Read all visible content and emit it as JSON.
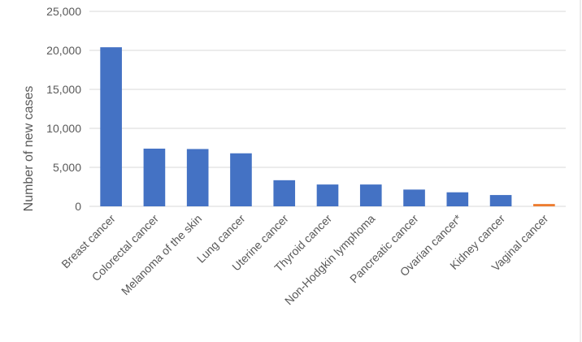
{
  "chart_data": {
    "type": "bar",
    "title": "",
    "xlabel": "",
    "ylabel": "Number of new cases",
    "ylim": [
      0,
      25000
    ],
    "yticks": [
      0,
      5000,
      10000,
      15000,
      20000,
      25000
    ],
    "ytick_labels": [
      "0",
      "5,000",
      "10,000",
      "15,000",
      "20,000",
      "25,000"
    ],
    "grid": true,
    "legend": "none",
    "categories": [
      "Breast cancer",
      "Colorectal cancer",
      "Melanoma of the skin",
      "Lung cancer",
      "Uterine cancer",
      "Thyroid cancer",
      "Non-Hodgkin lymphoma",
      "Pancreatic cancer",
      "Ovarian cancer*",
      "Kidney cancer",
      "Vaginal cancer"
    ],
    "values": [
      20400,
      7400,
      7350,
      6800,
      3350,
      2800,
      2800,
      2150,
      1800,
      1450,
      300
    ],
    "colors": [
      "#4472c4",
      "#4472c4",
      "#4472c4",
      "#4472c4",
      "#4472c4",
      "#4472c4",
      "#4472c4",
      "#4472c4",
      "#4472c4",
      "#4472c4",
      "#ed7d31"
    ]
  }
}
